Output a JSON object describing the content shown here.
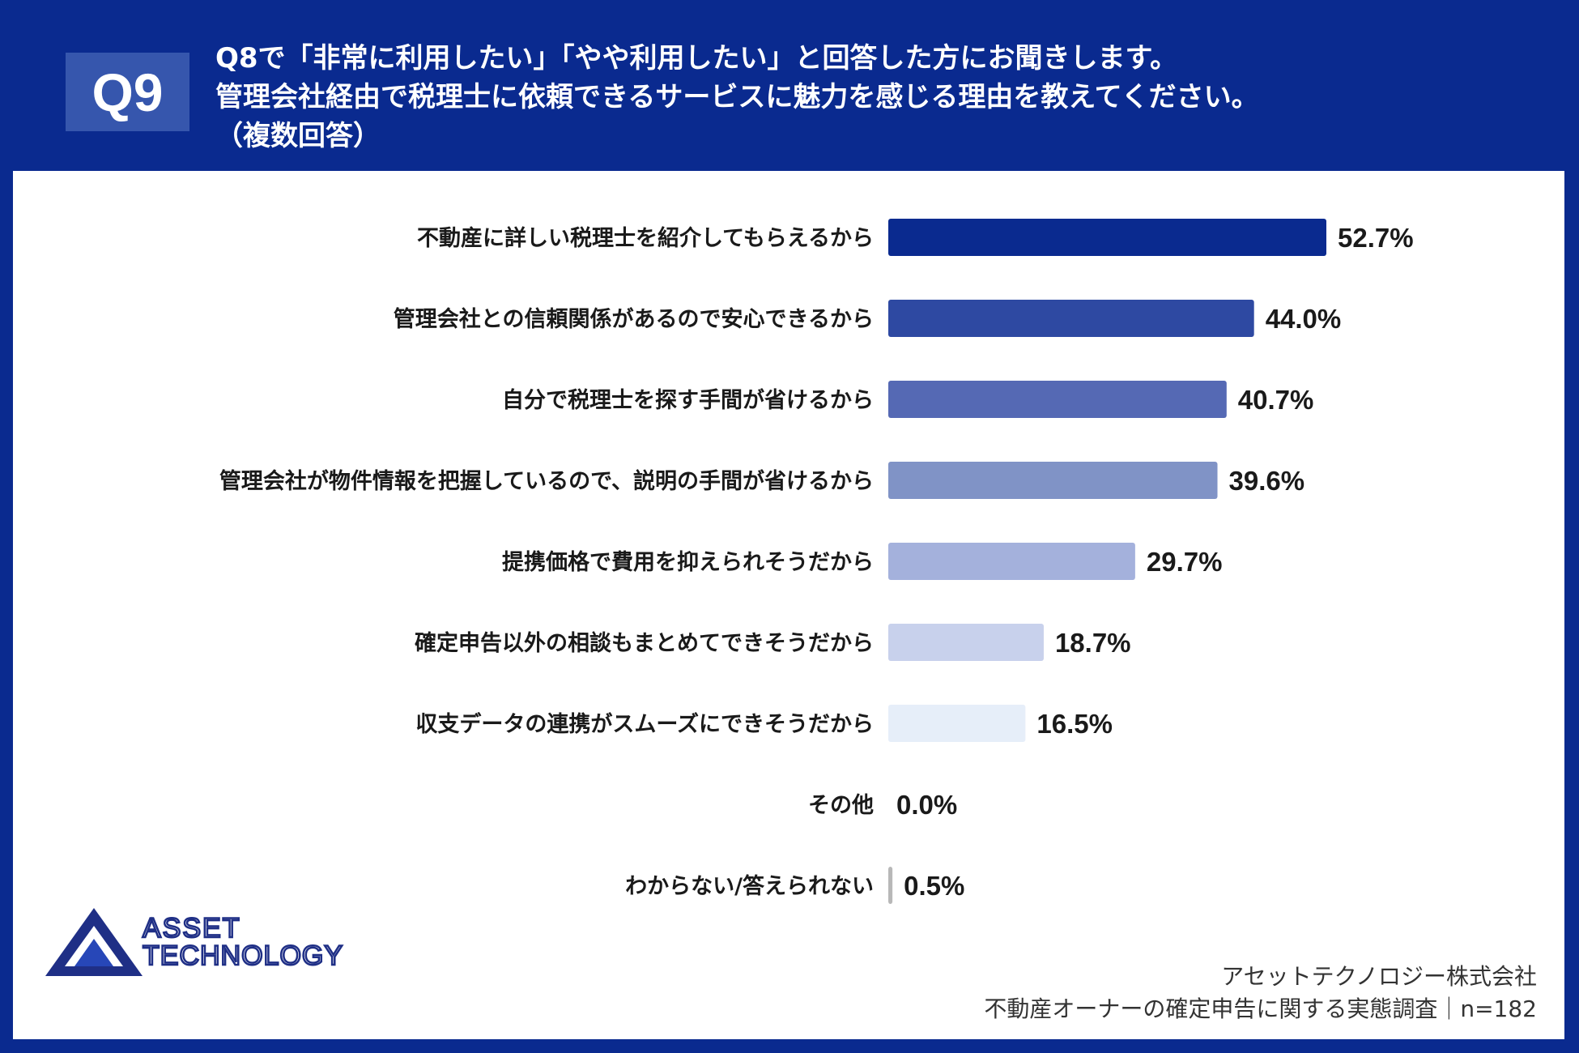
{
  "header": {
    "badge": "Q9",
    "question_line1": "Q8で「非常に利用したい」「やや利用したい」と回答した方にお聞きします。",
    "question_line2": "管理会社経由で税理士に依頼できるサービスに魅力を感じる理由を教えてください。",
    "question_line3": "（複数回答）"
  },
  "logo": {
    "line1": "ASSET",
    "line2": "TECHNOLOGY",
    "icon": "triangle-logo-icon"
  },
  "footer": {
    "company": "アセットテクノロジー株式会社",
    "survey": "不動産オーナーの確定申告に関する実態調査｜n=182"
  },
  "colors": {
    "header_bg": "#0a2a8f",
    "panel_bg": "#ffffff",
    "bar_colors": [
      "#0a2a8f",
      "#2e49a2",
      "#5569b4",
      "#8093c6",
      "#a4b1dc",
      "#c8d1ec",
      "#e6eef9",
      "#dfe5f2",
      "#b8b8b8"
    ]
  },
  "chart_data": {
    "type": "bar",
    "orientation": "horizontal",
    "categories": [
      "不動産に詳しい税理士を紹介してもらえるから",
      "管理会社との信頼関係があるので安心できるから",
      "自分で税理士を探す手間が省けるから",
      "管理会社が物件情報を把握しているので、説明の手間が省けるから",
      "提携価格で費用を抑えられそうだから",
      "確定申告以外の相談もまとめてできそうだから",
      "収支データの連携がスムーズにできそうだから",
      "その他",
      "わからない/答えられない"
    ],
    "values": [
      52.7,
      44.0,
      40.7,
      39.6,
      29.7,
      18.7,
      16.5,
      0.0,
      0.5
    ],
    "value_labels": [
      "52.7%",
      "44.0%",
      "40.7%",
      "39.6%",
      "29.7%",
      "18.7%",
      "16.5%",
      "0.0%",
      "0.5%"
    ],
    "unit": "%",
    "xlim": [
      0,
      100
    ],
    "grid": false,
    "legend": "none"
  }
}
